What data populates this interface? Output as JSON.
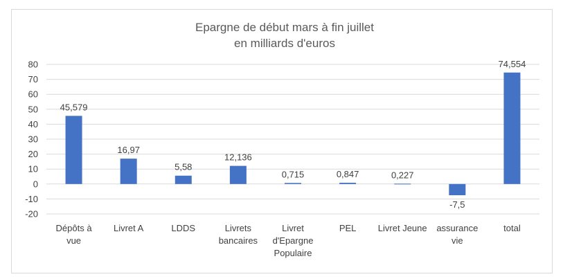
{
  "chart_data": {
    "type": "bar",
    "title_lines": [
      "Epargne de début mars à fin juillet",
      "en milliards d'euros"
    ],
    "categories": [
      [
        "Dépôts à",
        "vue"
      ],
      [
        "Livret A"
      ],
      [
        "LDDS"
      ],
      [
        "Livrets",
        "bancaires"
      ],
      [
        "Livret",
        "d'Epargne",
        "Populaire"
      ],
      [
        "PEL"
      ],
      [
        "Livret Jeune"
      ],
      [
        "assurance",
        "vie"
      ],
      [
        "total"
      ]
    ],
    "values": [
      45.579,
      16.97,
      5.58,
      12.136,
      0.715,
      0.847,
      0.227,
      -7.5,
      74.554
    ],
    "data_labels": [
      "45,579",
      "16,97",
      "5,58",
      "12,136",
      "0,715",
      "0,847",
      "0,227",
      "-7,5",
      "74,554"
    ],
    "xlabel": "",
    "ylabel": "",
    "ylim": [
      -20,
      80
    ],
    "yticks": [
      -20,
      -10,
      0,
      10,
      20,
      30,
      40,
      50,
      60,
      70,
      80
    ],
    "ytick_labels": [
      "-20",
      "-10",
      "0",
      "10",
      "20",
      "30",
      "40",
      "50",
      "60",
      "70",
      "80"
    ],
    "grid": true,
    "legend": "none",
    "bar_color": "#4472c4"
  }
}
